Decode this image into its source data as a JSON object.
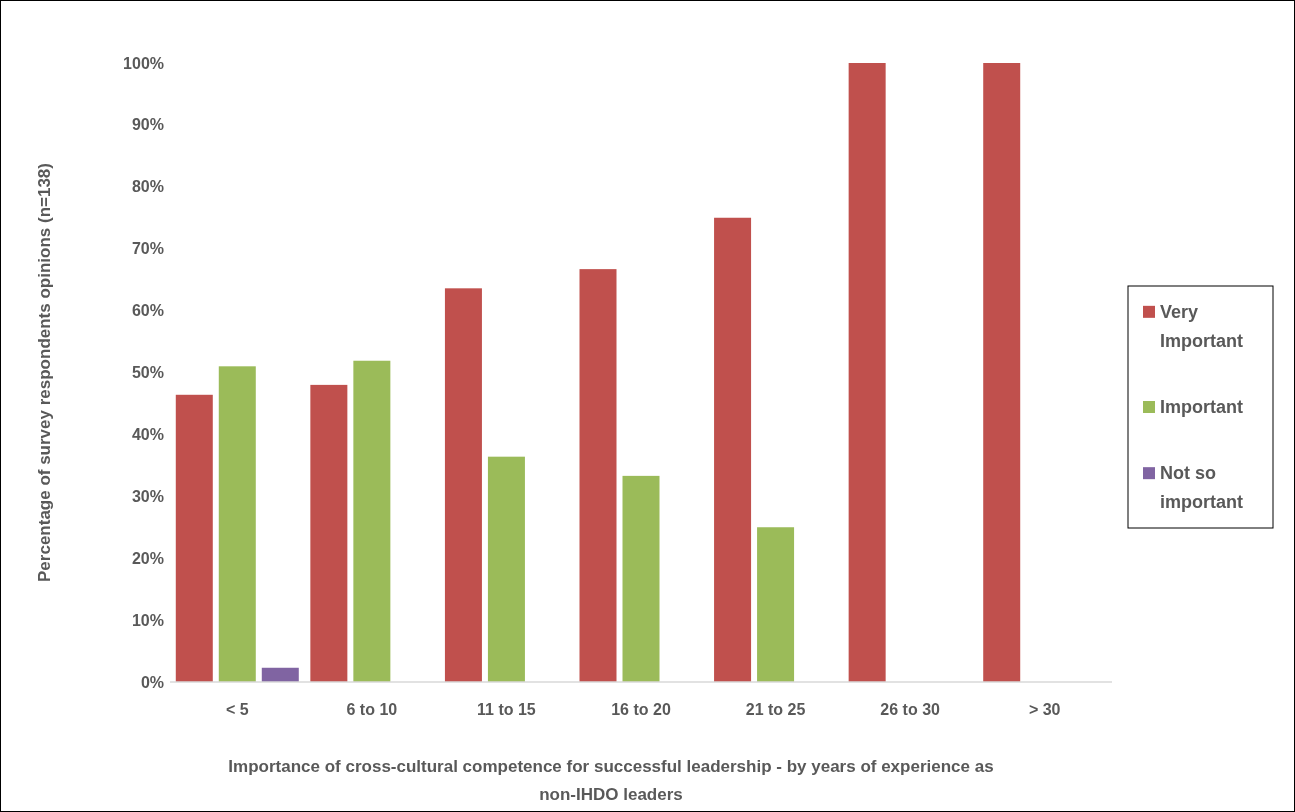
{
  "chart_data": {
    "type": "bar",
    "xlabel": "Importance of cross-cultural competence for successful leadership - by years of experience as non-IHDO leaders",
    "ylabel": "Percentage of survey respondents opinions (n=138)",
    "categories": [
      "< 5",
      "6 to 10",
      "11 to 15",
      "16 to 20",
      "21 to 25",
      "26 to 30",
      "> 30"
    ],
    "series": [
      {
        "name": "Very Important",
        "color": "#c0504d",
        "values": [
          46.4,
          48,
          63.6,
          66.7,
          75,
          100,
          100
        ]
      },
      {
        "name": "Important",
        "color": "#9bbb59",
        "values": [
          51,
          51.9,
          36.4,
          33.3,
          25,
          null,
          null
        ]
      },
      {
        "name": "Not so important",
        "color": "#8064a2",
        "values": [
          2.3,
          null,
          null,
          null,
          null,
          null,
          null
        ]
      }
    ],
    "ylim": [
      0,
      100
    ],
    "yticks": [
      {
        "value": 0,
        "label": "0%"
      },
      {
        "value": 10,
        "label": "10%"
      },
      {
        "value": 20,
        "label": "20%"
      },
      {
        "value": 30,
        "label": "30%"
      },
      {
        "value": 40,
        "label": "40%"
      },
      {
        "value": 50,
        "label": "50%"
      },
      {
        "value": 60,
        "label": "60%"
      },
      {
        "value": 70,
        "label": "70%"
      },
      {
        "value": 80,
        "label": "80%"
      },
      {
        "value": 90,
        "label": "90%"
      },
      {
        "value": 100,
        "label": "100%"
      }
    ],
    "grid": false,
    "legend": "right"
  }
}
